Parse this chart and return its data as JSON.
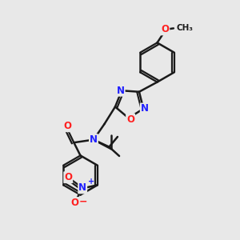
{
  "background_color": "#e8e8e8",
  "bond_color": "#1a1a1a",
  "nitrogen_color": "#2020ff",
  "oxygen_color": "#ff2020",
  "bond_width": 1.8,
  "figsize": [
    3.0,
    3.0
  ],
  "dpi": 100,
  "xlim": [
    0,
    10
  ],
  "ylim": [
    0,
    10
  ]
}
